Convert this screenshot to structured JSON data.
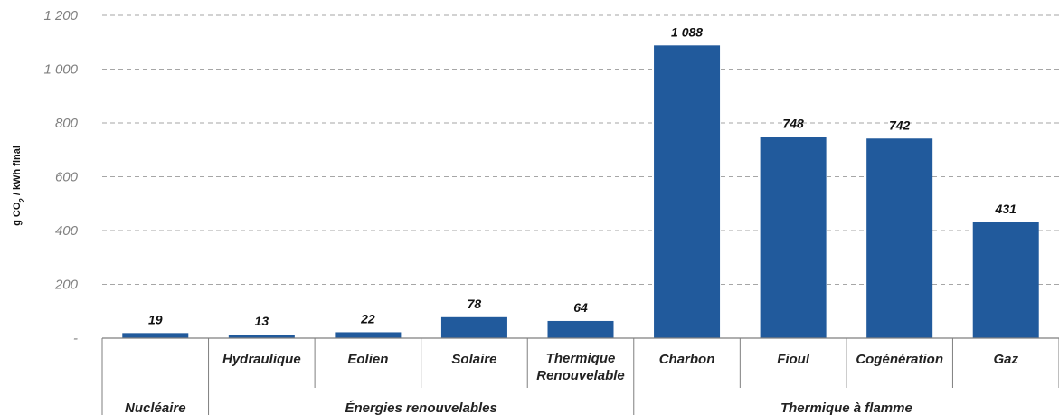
{
  "chart_data": {
    "type": "bar",
    "ylabel": "g CO2 / kWh final",
    "ylabel_parts": {
      "pre": "g CO",
      "sub": "2",
      "post": " / kWh final"
    },
    "ylim": [
      0,
      1200
    ],
    "y_ticks": [
      {
        "value": 0,
        "label": "-"
      },
      {
        "value": 200,
        "label": "200"
      },
      {
        "value": 400,
        "label": "400"
      },
      {
        "value": 600,
        "label": "600"
      },
      {
        "value": 800,
        "label": "800"
      },
      {
        "value": 1000,
        "label": "1 000"
      },
      {
        "value": 1200,
        "label": "1 200"
      }
    ],
    "grid": true,
    "categories": [
      "Nucléaire",
      "Hydraulique",
      "Eolien",
      "Solaire",
      "Thermique Renouvelable",
      "Charbon",
      "Fioul",
      "Cogénération",
      "Gaz"
    ],
    "category_lines": [
      [
        ""
      ],
      [
        "Hydraulique"
      ],
      [
        "Eolien"
      ],
      [
        "Solaire"
      ],
      [
        "Thermique",
        "Renouvelable"
      ],
      [
        "Charbon"
      ],
      [
        "Fioul"
      ],
      [
        "Cogénération"
      ],
      [
        "Gaz"
      ]
    ],
    "values": [
      19,
      13,
      22,
      78,
      64,
      1088,
      748,
      742,
      431
    ],
    "data_labels": [
      "19",
      "13",
      "22",
      "78",
      "64",
      "1 088",
      "748",
      "742",
      "431"
    ],
    "groups": [
      {
        "label": "Nucléaire",
        "start": 0,
        "end": 0
      },
      {
        "label": "Énergies renouvelables",
        "start": 1,
        "end": 4
      },
      {
        "label": "Thermique à flamme",
        "start": 5,
        "end": 8
      }
    ],
    "colors": {
      "bar": "#215a9c",
      "grid": "#a6a6a6",
      "axis": "#7f7f7f"
    }
  }
}
